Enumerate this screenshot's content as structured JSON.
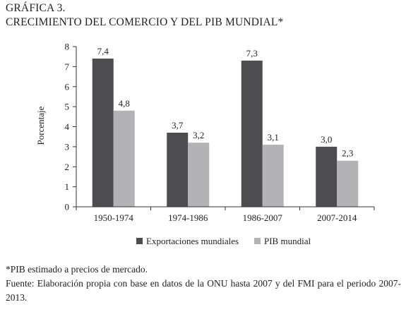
{
  "heading": {
    "label": "GRÁFICA 3.",
    "title": "CRECIMIENTO DEL COMERCIO Y DEL PIB MUNDIAL*"
  },
  "chart_data": {
    "type": "bar",
    "categories": [
      "1950-1974",
      "1974-1986",
      "1986-2007",
      "2007-2014"
    ],
    "series": [
      {
        "name": "Exportaciones mundiales",
        "values": [
          7.4,
          3.7,
          7.3,
          3.0
        ],
        "labels": [
          "7,4",
          "3,7",
          "7,3",
          "3,0"
        ],
        "color": "#4d4d4f"
      },
      {
        "name": "PIB mundial",
        "values": [
          4.8,
          3.2,
          3.1,
          2.3
        ],
        "labels": [
          "4,8",
          "3,2",
          "3,1",
          "2,3"
        ],
        "color": "#b3b3b5"
      }
    ],
    "ylabel": "Porcentaje",
    "ylim": [
      0,
      8
    ],
    "yticks": [
      0,
      1,
      2,
      3,
      4,
      5,
      6,
      7,
      8
    ],
    "grid": false,
    "legend_position": "bottom-center"
  },
  "notes": {
    "footnote": "*PIB estimado a precios de mercado.",
    "source": "Fuente: Elaboración propia con base en datos de la ONU hasta 2007 y del FMI para el periodo 2007-2013."
  }
}
